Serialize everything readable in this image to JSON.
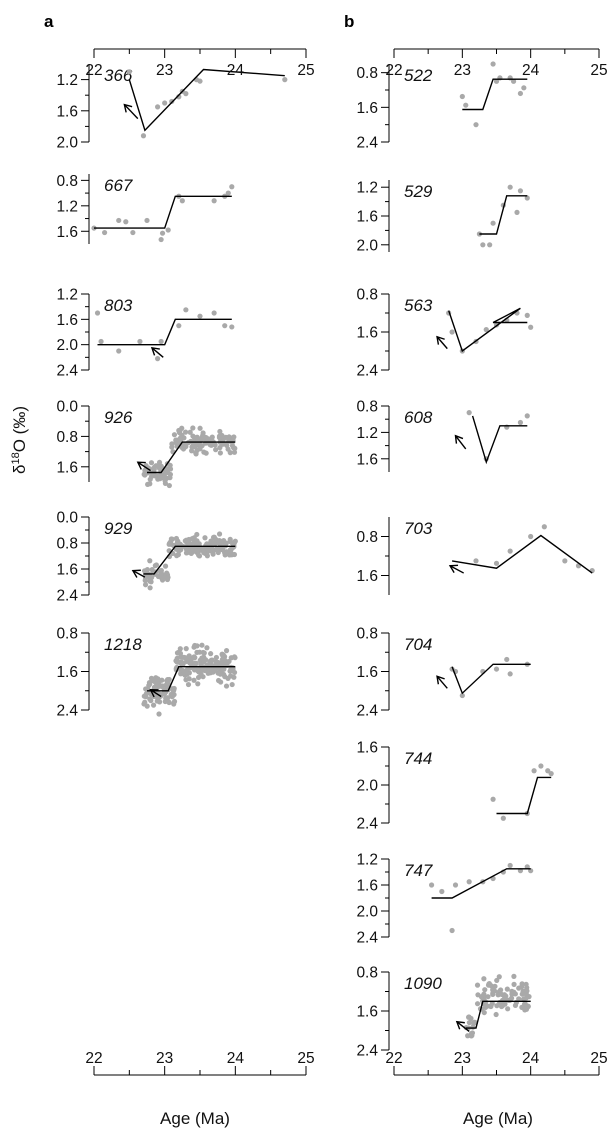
{
  "figure": {
    "panels": [
      {
        "letter": "a"
      },
      {
        "letter": "b"
      }
    ],
    "xlabel": "Age (Ma)",
    "ylabel": "δ18O (‰)",
    "ylabel_base": "δ",
    "ylabel_sup": "18",
    "ylabel_rest": "O (‰)"
  },
  "colors": {
    "points": "#a9a9a9",
    "lines": "#000000",
    "axes": "#000000"
  },
  "chart_data": [
    {
      "panel": "a",
      "site": "366",
      "type": "scatter",
      "xlim": [
        22,
        25
      ],
      "ylim": [
        2.0,
        1.0
      ],
      "y_inverted": true,
      "yticks": [
        "1.2",
        "1.6",
        "2.0"
      ],
      "points": [
        [
          22.5,
          1.1
        ],
        [
          22.7,
          1.92
        ],
        [
          22.9,
          1.55
        ],
        [
          23.0,
          1.5
        ],
        [
          23.1,
          1.48
        ],
        [
          23.2,
          1.42
        ],
        [
          23.25,
          1.35
        ],
        [
          23.3,
          1.38
        ],
        [
          23.45,
          1.2
        ],
        [
          23.5,
          1.22
        ],
        [
          24.7,
          1.2
        ]
      ],
      "fit": [
        [
          22.5,
          1.2
        ],
        [
          22.72,
          1.85
        ],
        [
          23.55,
          1.07
        ],
        [
          24.7,
          1.15
        ]
      ],
      "arrow": {
        "from": [
          22.62,
          1.7
        ],
        "to": [
          22.43,
          1.52
        ]
      }
    },
    {
      "panel": "a",
      "site": "667",
      "type": "scatter",
      "xlim": [
        22,
        25
      ],
      "ylim": [
        1.8,
        0.7
      ],
      "y_inverted": true,
      "yticks": [
        "0.8",
        "1.2",
        "1.6"
      ],
      "points": [
        [
          22.0,
          1.55
        ],
        [
          22.15,
          1.62
        ],
        [
          22.35,
          1.43
        ],
        [
          22.45,
          1.45
        ],
        [
          22.55,
          1.62
        ],
        [
          22.75,
          1.43
        ],
        [
          22.95,
          1.73
        ],
        [
          22.97,
          1.63
        ],
        [
          23.05,
          1.58
        ],
        [
          23.2,
          1.05
        ],
        [
          23.25,
          1.12
        ],
        [
          23.7,
          1.12
        ],
        [
          23.85,
          1.05
        ],
        [
          23.9,
          1.0
        ],
        [
          23.95,
          0.9
        ]
      ],
      "fit": [
        [
          22.0,
          1.55
        ],
        [
          23.0,
          1.55
        ],
        [
          23.15,
          1.05
        ],
        [
          23.95,
          1.05
        ]
      ]
    },
    {
      "panel": "a",
      "site": "803",
      "type": "scatter",
      "xlim": [
        22,
        25
      ],
      "ylim": [
        2.4,
        1.2
      ],
      "y_inverted": true,
      "yticks": [
        "1.2",
        "1.6",
        "2.0",
        "2.4"
      ],
      "points": [
        [
          22.05,
          1.5
        ],
        [
          22.1,
          1.95
        ],
        [
          22.35,
          2.1
        ],
        [
          22.65,
          1.95
        ],
        [
          22.9,
          2.22
        ],
        [
          22.95,
          1.95
        ],
        [
          23.2,
          1.7
        ],
        [
          23.3,
          1.45
        ],
        [
          23.5,
          1.55
        ],
        [
          23.7,
          1.5
        ],
        [
          23.85,
          1.7
        ],
        [
          23.95,
          1.72
        ]
      ],
      "fit": [
        [
          22.05,
          2.0
        ],
        [
          23.0,
          2.0
        ],
        [
          23.15,
          1.6
        ],
        [
          23.95,
          1.6
        ]
      ],
      "arrow": {
        "from": [
          22.98,
          2.2
        ],
        "to": [
          22.82,
          2.05
        ]
      }
    },
    {
      "panel": "a",
      "site": "926",
      "type": "scatter",
      "xlim": [
        22,
        25
      ],
      "ylim": [
        2.0,
        0.0
      ],
      "y_inverted": true,
      "yticks": [
        "0.0",
        "0.8",
        "1.6"
      ],
      "dense": {
        "from": 22.7,
        "to": 24.0,
        "n": 170,
        "step_at": 23.1,
        "y_before": 1.75,
        "y_after": 0.95,
        "noise": 0.3,
        "seed": 7
      },
      "fit": [
        [
          22.75,
          1.75
        ],
        [
          22.95,
          1.75
        ],
        [
          23.25,
          0.95
        ],
        [
          24.0,
          0.95
        ]
      ],
      "arrow": {
        "from": [
          22.8,
          1.7
        ],
        "to": [
          22.62,
          1.48
        ]
      }
    },
    {
      "panel": "a",
      "site": "929",
      "type": "scatter",
      "xlim": [
        22,
        25
      ],
      "ylim": [
        2.4,
        0.0
      ],
      "y_inverted": true,
      "yticks": [
        "0.0",
        "0.8",
        "1.6",
        "2.4"
      ],
      "dense": {
        "from": 22.7,
        "to": 24.0,
        "n": 180,
        "step_at": 23.05,
        "y_before": 1.75,
        "y_after": 0.9,
        "noise": 0.3,
        "seed": 11
      },
      "fit": [
        [
          22.7,
          1.75
        ],
        [
          22.85,
          1.75
        ],
        [
          23.15,
          0.9
        ],
        [
          24.0,
          0.9
        ]
      ],
      "arrow": {
        "from": [
          22.72,
          1.85
        ],
        "to": [
          22.55,
          1.65
        ]
      }
    },
    {
      "panel": "a",
      "site": "1218",
      "type": "scatter",
      "xlim": [
        22,
        25
      ],
      "ylim": [
        2.4,
        0.8
      ],
      "y_inverted": true,
      "yticks": [
        "0.8",
        "1.6",
        "2.4"
      ],
      "dense": {
        "from": 22.7,
        "to": 24.0,
        "n": 240,
        "step_at": 23.15,
        "y_before": 2.0,
        "y_after": 1.5,
        "noise": 0.38,
        "seed": 19
      },
      "fit": [
        [
          22.75,
          2.0
        ],
        [
          23.05,
          2.0
        ],
        [
          23.2,
          1.5
        ],
        [
          24.0,
          1.5
        ]
      ],
      "arrow": {
        "from": [
          22.95,
          2.12
        ],
        "to": [
          22.8,
          1.98
        ]
      }
    },
    {
      "panel": "b",
      "site": "522",
      "type": "scatter",
      "xlim": [
        22,
        25
      ],
      "ylim": [
        2.4,
        0.6
      ],
      "y_inverted": true,
      "yticks": [
        "0.8",
        "1.6",
        "2.4"
      ],
      "points": [
        [
          23.0,
          1.35
        ],
        [
          23.05,
          1.55
        ],
        [
          23.2,
          2.0
        ],
        [
          23.45,
          0.6
        ],
        [
          23.5,
          1.0
        ],
        [
          23.55,
          0.92
        ],
        [
          23.7,
          0.92
        ],
        [
          23.75,
          1.0
        ],
        [
          23.85,
          1.28
        ],
        [
          23.9,
          1.15
        ]
      ],
      "fit": [
        [
          23.0,
          1.65
        ],
        [
          23.3,
          1.65
        ],
        [
          23.45,
          0.95
        ],
        [
          23.95,
          0.95
        ]
      ]
    },
    {
      "panel": "b",
      "site": "529",
      "type": "scatter",
      "xlim": [
        22,
        25
      ],
      "ylim": [
        2.1,
        1.1
      ],
      "y_inverted": true,
      "yticks": [
        "1.2",
        "1.6",
        "2.0"
      ],
      "points": [
        [
          23.25,
          1.85
        ],
        [
          23.3,
          2.0
        ],
        [
          23.4,
          2.0
        ],
        [
          23.45,
          1.7
        ],
        [
          23.6,
          1.45
        ],
        [
          23.7,
          1.2
        ],
        [
          23.8,
          1.55
        ],
        [
          23.85,
          1.25
        ],
        [
          23.95,
          1.35
        ]
      ],
      "fit": [
        [
          23.25,
          1.85
        ],
        [
          23.5,
          1.85
        ],
        [
          23.65,
          1.32
        ],
        [
          23.95,
          1.32
        ]
      ]
    },
    {
      "panel": "b",
      "site": "563",
      "type": "scatter",
      "xlim": [
        22,
        25
      ],
      "ylim": [
        2.4,
        0.8
      ],
      "y_inverted": true,
      "yticks": [
        "0.8",
        "1.6",
        "2.4"
      ],
      "points": [
        [
          22.8,
          1.2
        ],
        [
          22.85,
          1.6
        ],
        [
          23.0,
          2.0
        ],
        [
          23.2,
          1.8
        ],
        [
          23.35,
          1.55
        ],
        [
          23.5,
          1.45
        ],
        [
          23.65,
          1.35
        ],
        [
          23.8,
          1.2
        ],
        [
          23.95,
          1.25
        ],
        [
          24.0,
          1.5
        ]
      ],
      "fit": [
        [
          22.8,
          1.15
        ],
        [
          23.0,
          2.0
        ],
        [
          23.85,
          1.1
        ],
        [
          23.45,
          1.4
        ],
        [
          23.95,
          1.4
        ]
      ],
      "arrow": {
        "from": [
          22.78,
          1.95
        ],
        "to": [
          22.63,
          1.7
        ]
      }
    },
    {
      "panel": "b",
      "site": "608",
      "type": "scatter",
      "xlim": [
        22,
        25
      ],
      "ylim": [
        1.8,
        0.8
      ],
      "y_inverted": true,
      "yticks": [
        "0.8",
        "1.2",
        "1.6"
      ],
      "points": [
        [
          23.1,
          0.9
        ],
        [
          23.35,
          1.6
        ],
        [
          23.65,
          1.12
        ],
        [
          23.85,
          1.05
        ],
        [
          23.95,
          0.95
        ]
      ],
      "fit": [
        [
          23.15,
          0.95
        ],
        [
          23.35,
          1.65
        ],
        [
          23.55,
          1.1
        ],
        [
          23.95,
          1.1
        ]
      ],
      "arrow": {
        "from": [
          23.05,
          1.45
        ],
        "to": [
          22.9,
          1.25
        ]
      }
    },
    {
      "panel": "b",
      "site": "703",
      "type": "scatter",
      "xlim": [
        22,
        25
      ],
      "ylim": [
        2.0,
        0.4
      ],
      "y_inverted": true,
      "yticks": [
        "0.8",
        "1.6"
      ],
      "points": [
        [
          23.2,
          1.3
        ],
        [
          23.5,
          1.35
        ],
        [
          23.7,
          1.1
        ],
        [
          24.0,
          0.8
        ],
        [
          24.2,
          0.6
        ],
        [
          24.5,
          1.3
        ],
        [
          24.7,
          1.4
        ],
        [
          24.9,
          1.5
        ]
      ],
      "fit": [
        [
          22.85,
          1.3
        ],
        [
          23.5,
          1.45
        ],
        [
          24.15,
          0.78
        ],
        [
          24.9,
          1.55
        ]
      ],
      "arrow": {
        "from": [
          23.02,
          1.55
        ],
        "to": [
          22.82,
          1.4
        ]
      }
    },
    {
      "panel": "b",
      "site": "704",
      "type": "scatter",
      "xlim": [
        22,
        25
      ],
      "ylim": [
        2.4,
        0.8
      ],
      "y_inverted": true,
      "yticks": [
        "0.8",
        "1.6",
        "2.4"
      ],
      "points": [
        [
          22.85,
          1.55
        ],
        [
          22.9,
          1.6
        ],
        [
          23.0,
          2.1
        ],
        [
          23.3,
          1.6
        ],
        [
          23.5,
          1.55
        ],
        [
          23.65,
          1.35
        ],
        [
          23.7,
          1.65
        ],
        [
          23.95,
          1.45
        ]
      ],
      "fit": [
        [
          22.85,
          1.5
        ],
        [
          23.0,
          2.05
        ],
        [
          23.45,
          1.45
        ],
        [
          24.0,
          1.45
        ]
      ],
      "arrow": {
        "from": [
          22.78,
          1.95
        ],
        "to": [
          22.63,
          1.7
        ]
      }
    },
    {
      "panel": "b",
      "site": "744",
      "type": "scatter",
      "xlim": [
        22,
        25
      ],
      "ylim": [
        2.4,
        1.6
      ],
      "y_inverted": true,
      "yticks": [
        "1.6",
        "2.0",
        "2.4"
      ],
      "points": [
        [
          23.45,
          2.15
        ],
        [
          23.6,
          2.35
        ],
        [
          23.95,
          2.3
        ],
        [
          24.05,
          1.85
        ],
        [
          24.15,
          1.8
        ],
        [
          24.25,
          1.85
        ],
        [
          24.3,
          1.88
        ]
      ],
      "fit": [
        [
          23.5,
          2.3
        ],
        [
          23.95,
          2.3
        ],
        [
          24.1,
          1.92
        ],
        [
          24.3,
          1.92
        ]
      ]
    },
    {
      "panel": "b",
      "site": "747",
      "type": "scatter",
      "xlim": [
        22,
        25
      ],
      "ylim": [
        2.4,
        1.2
      ],
      "y_inverted": true,
      "yticks": [
        "1.2",
        "1.6",
        "2.0",
        "2.4"
      ],
      "points": [
        [
          22.55,
          1.6
        ],
        [
          22.7,
          1.7
        ],
        [
          22.85,
          2.3
        ],
        [
          22.9,
          1.6
        ],
        [
          23.1,
          1.55
        ],
        [
          23.3,
          1.55
        ],
        [
          23.45,
          1.5
        ],
        [
          23.6,
          1.4
        ],
        [
          23.7,
          1.3
        ],
        [
          23.85,
          1.38
        ],
        [
          23.95,
          1.32
        ],
        [
          24.0,
          1.38
        ]
      ],
      "fit": [
        [
          22.55,
          1.8
        ],
        [
          22.85,
          1.8
        ],
        [
          23.65,
          1.35
        ],
        [
          24.0,
          1.35
        ]
      ]
    },
    {
      "panel": "b",
      "site": "1090",
      "type": "scatter",
      "xlim": [
        22,
        25
      ],
      "ylim": [
        2.4,
        0.8
      ],
      "y_inverted": true,
      "yticks": [
        "0.8",
        "1.6",
        "2.4"
      ],
      "dense": {
        "from": 23.05,
        "to": 24.0,
        "n": 110,
        "step_at": 23.2,
        "y_before": 1.95,
        "y_after": 1.3,
        "noise": 0.32,
        "seed": 29
      },
      "fit": [
        [
          23.05,
          1.95
        ],
        [
          23.2,
          1.95
        ],
        [
          23.3,
          1.4
        ],
        [
          24.0,
          1.4
        ]
      ],
      "arrow": {
        "from": [
          23.1,
          2.02
        ],
        "to": [
          22.92,
          1.82
        ]
      }
    }
  ],
  "x_axis": {
    "ticks": [
      "22",
      "23",
      "24",
      "25"
    ]
  }
}
